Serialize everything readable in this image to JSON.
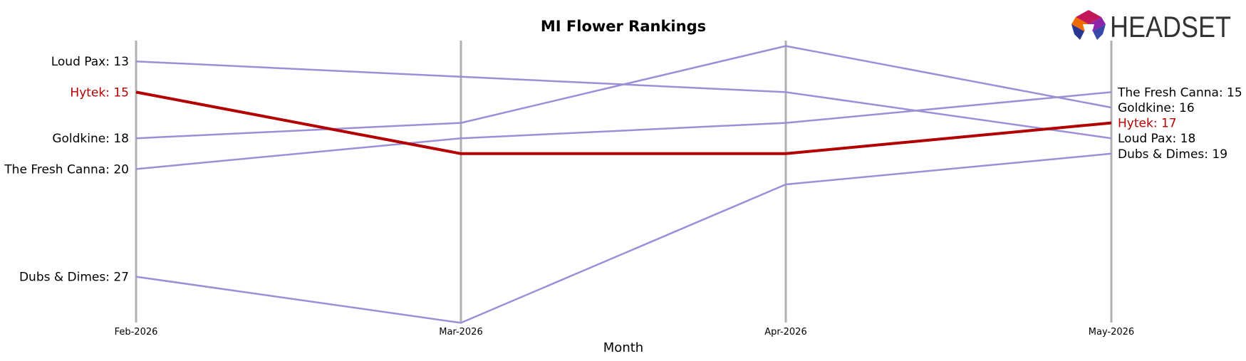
{
  "chart_data": {
    "type": "line",
    "title": "MI Flower Rankings",
    "xlabel": "Month",
    "ylabel": "",
    "x": [
      "Feb-2026",
      "Mar-2026",
      "Apr-2026",
      "May-2026"
    ],
    "ylim": [
      11,
      31
    ],
    "y_inverted": true,
    "grid": false,
    "series": [
      {
        "name": "Loud Pax",
        "values": [
          13,
          14,
          15,
          18
        ],
        "color": "#9b8fd8",
        "highlight": false
      },
      {
        "name": "Goldkine",
        "values": [
          18,
          17,
          12,
          16
        ],
        "color": "#9b8fd8",
        "highlight": false
      },
      {
        "name": "The Fresh Canna",
        "values": [
          20,
          18,
          17,
          15
        ],
        "color": "#9b8fd8",
        "highlight": false
      },
      {
        "name": "Dubs & Dimes",
        "values": [
          27,
          30,
          21,
          19
        ],
        "color": "#9b8fd8",
        "highlight": false
      },
      {
        "name": "Hytek",
        "values": [
          15,
          19,
          19,
          17
        ],
        "color": "#b30000",
        "highlight": true
      }
    ]
  },
  "logo": {
    "text": "HEADSET",
    "icon": "headset-hexagon-logo-icon"
  },
  "colors": {
    "highlight": "#b30000",
    "series": "#9b8fd8",
    "axis_line": "#b0b0b0",
    "text": "#000000"
  }
}
